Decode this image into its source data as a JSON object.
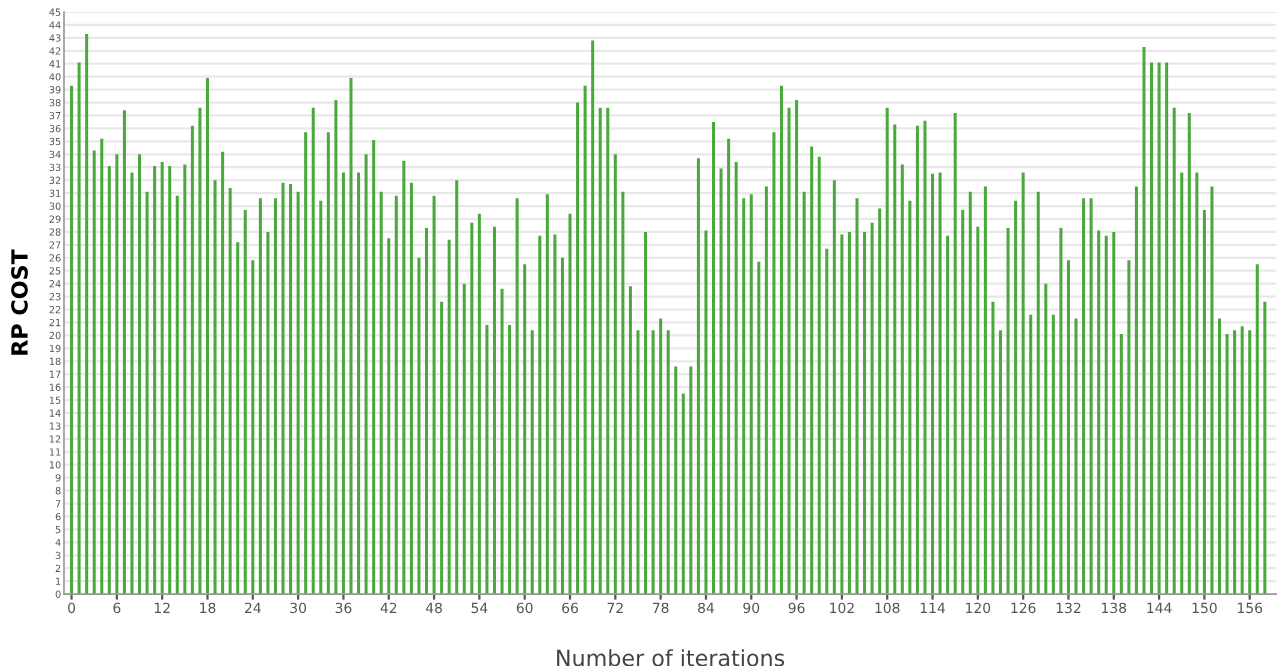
{
  "chart_data": {
    "type": "bar",
    "xlabel": "Number of iterations",
    "ylabel": "RP COST",
    "x": [
      0,
      1,
      2,
      3,
      4,
      5,
      6,
      7,
      8,
      9,
      10,
      11,
      12,
      13,
      14,
      15,
      16,
      17,
      18,
      19,
      20,
      21,
      22,
      23,
      24,
      25,
      26,
      27,
      28,
      29,
      30,
      31,
      32,
      33,
      34,
      35,
      36,
      37,
      38,
      39,
      40,
      41,
      42,
      43,
      44,
      45,
      46,
      47,
      48,
      49,
      50,
      51,
      52,
      53,
      54,
      55,
      56,
      57,
      58,
      59,
      60,
      61,
      62,
      63,
      64,
      65,
      66,
      67,
      68,
      69,
      70,
      71,
      72,
      73,
      74,
      75,
      76,
      77,
      78,
      79,
      80,
      81,
      82,
      83,
      84,
      85,
      86,
      87,
      88,
      89,
      90,
      91,
      92,
      93,
      94,
      95,
      96,
      97,
      98,
      99,
      100,
      101,
      102,
      103,
      104,
      105,
      106,
      107,
      108,
      109,
      110,
      111,
      112,
      113,
      114,
      115,
      116,
      117,
      118,
      119,
      120,
      121,
      122,
      123,
      124,
      125,
      126,
      127,
      128,
      129,
      130,
      131,
      132,
      133,
      134,
      135,
      136,
      137,
      138,
      139,
      140,
      141,
      142,
      143,
      144,
      145,
      146,
      147,
      148,
      149,
      150,
      151,
      152,
      153,
      154,
      155,
      156,
      157,
      158
    ],
    "series": [
      {
        "color": "#4aa83c",
        "values": [
          39.3,
          41.1,
          43.3,
          34.3,
          35.2,
          33.1,
          34.0,
          37.4,
          32.6,
          34.0,
          31.1,
          33.1,
          33.4,
          33.1,
          30.8,
          33.2,
          36.2,
          37.6,
          39.9,
          32.0,
          34.2,
          31.4,
          27.2,
          29.7,
          25.8,
          30.6,
          28.0,
          30.6,
          31.8,
          31.7,
          31.1,
          35.7,
          37.6,
          30.4,
          35.7,
          38.2,
          32.6,
          39.9,
          32.6,
          34.0,
          35.1,
          31.1,
          27.5,
          30.8,
          33.5,
          31.8,
          26.0,
          28.3,
          30.8,
          22.6,
          27.4,
          32.0,
          24.0,
          28.7,
          29.4,
          20.8,
          28.4,
          23.6,
          20.8,
          30.6,
          25.5,
          20.4,
          27.7,
          30.9,
          27.8,
          26.0,
          29.4,
          38.0,
          39.3,
          42.8,
          37.6,
          37.6,
          34.0,
          31.1,
          23.8,
          20.4,
          28.0,
          20.4,
          21.3,
          20.4,
          17.6,
          15.5,
          17.6,
          33.7,
          28.1,
          36.5,
          32.9,
          35.2,
          33.4,
          30.6,
          30.9,
          25.7,
          31.5,
          35.7,
          39.3,
          37.6,
          38.2,
          31.1,
          34.6,
          33.8,
          26.7,
          32.0,
          27.8,
          28.0,
          30.6,
          28.0,
          28.7,
          29.8,
          37.6,
          36.3,
          33.2,
          30.4,
          36.2,
          36.6,
          32.5,
          32.6,
          27.7,
          37.2,
          29.7,
          31.1,
          28.4,
          31.5,
          22.6,
          20.4,
          28.3,
          30.4,
          32.6,
          21.6,
          31.1,
          24.0,
          21.6,
          28.3,
          25.8,
          21.3,
          30.6,
          30.6,
          28.1,
          27.7,
          28.0,
          20.1,
          25.8,
          31.5,
          42.3,
          41.1,
          41.1,
          41.1,
          37.6,
          32.6,
          37.2,
          32.6,
          29.7,
          31.5,
          21.3,
          20.1,
          20.4,
          20.7,
          20.4,
          25.5,
          22.6
        ]
      }
    ],
    "xlim": [
      -1,
      159.5
    ],
    "xticks": [
      0,
      6,
      12,
      18,
      24,
      30,
      36,
      42,
      48,
      54,
      60,
      66,
      72,
      78,
      84,
      90,
      96,
      102,
      108,
      114,
      120,
      126,
      132,
      138,
      144,
      150,
      156
    ],
    "ylim": [
      0,
      45
    ],
    "yticks": [
      0,
      1,
      2,
      3,
      4,
      5,
      6,
      7,
      8,
      9,
      10,
      11,
      12,
      13,
      14,
      15,
      16,
      17,
      18,
      19,
      20,
      21,
      22,
      23,
      24,
      25,
      26,
      27,
      28,
      29,
      30,
      31,
      32,
      33,
      34,
      35,
      36,
      37,
      38,
      39,
      40,
      41,
      42,
      43,
      44,
      45
    ],
    "grid": "y"
  }
}
